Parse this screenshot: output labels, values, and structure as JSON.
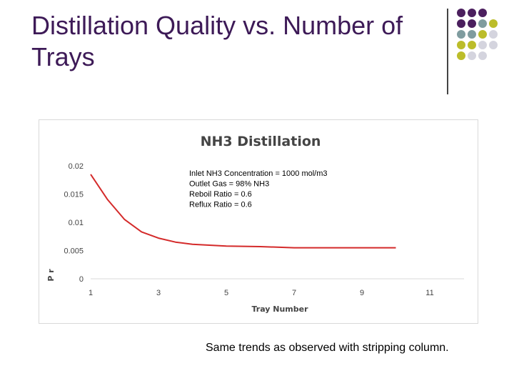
{
  "slide": {
    "title": "Distillation Quality vs. Number of Trays",
    "caption": "Same trends as observed with stripping column.",
    "decor_colors": [
      "#4b1f5e",
      "#7f9c9f",
      "#bcbd2a",
      "#d4d4de"
    ]
  },
  "chart_data": {
    "type": "line",
    "title": "NH3 Distillation",
    "xlabel": "Tray Number",
    "ylabel": "P r",
    "xlim": [
      1,
      11
    ],
    "ylim": [
      0,
      0.02
    ],
    "xticks": [
      "1",
      "3",
      "5",
      "7",
      "9",
      "11"
    ],
    "yticks": [
      "0",
      "0.005",
      "0.01",
      "0.015",
      "0.02"
    ],
    "grid": false,
    "legend": "none",
    "series": [
      {
        "color": "#d42a2a",
        "x": [
          1,
          1.5,
          2,
          2.5,
          3,
          3.5,
          4,
          5,
          6,
          7,
          8,
          9,
          10
        ],
        "y": [
          0.0185,
          0.014,
          0.0105,
          0.0083,
          0.0072,
          0.0065,
          0.0061,
          0.0058,
          0.0057,
          0.0055,
          0.0055,
          0.0055,
          0.0055
        ]
      }
    ],
    "annotations": [
      "Inlet NH3 Concentration = 1000 mol/m3",
      "Outlet Gas = 98% NH3",
      "Reboil Ratio = 0.6",
      "Reflux Ratio = 0.6"
    ]
  }
}
